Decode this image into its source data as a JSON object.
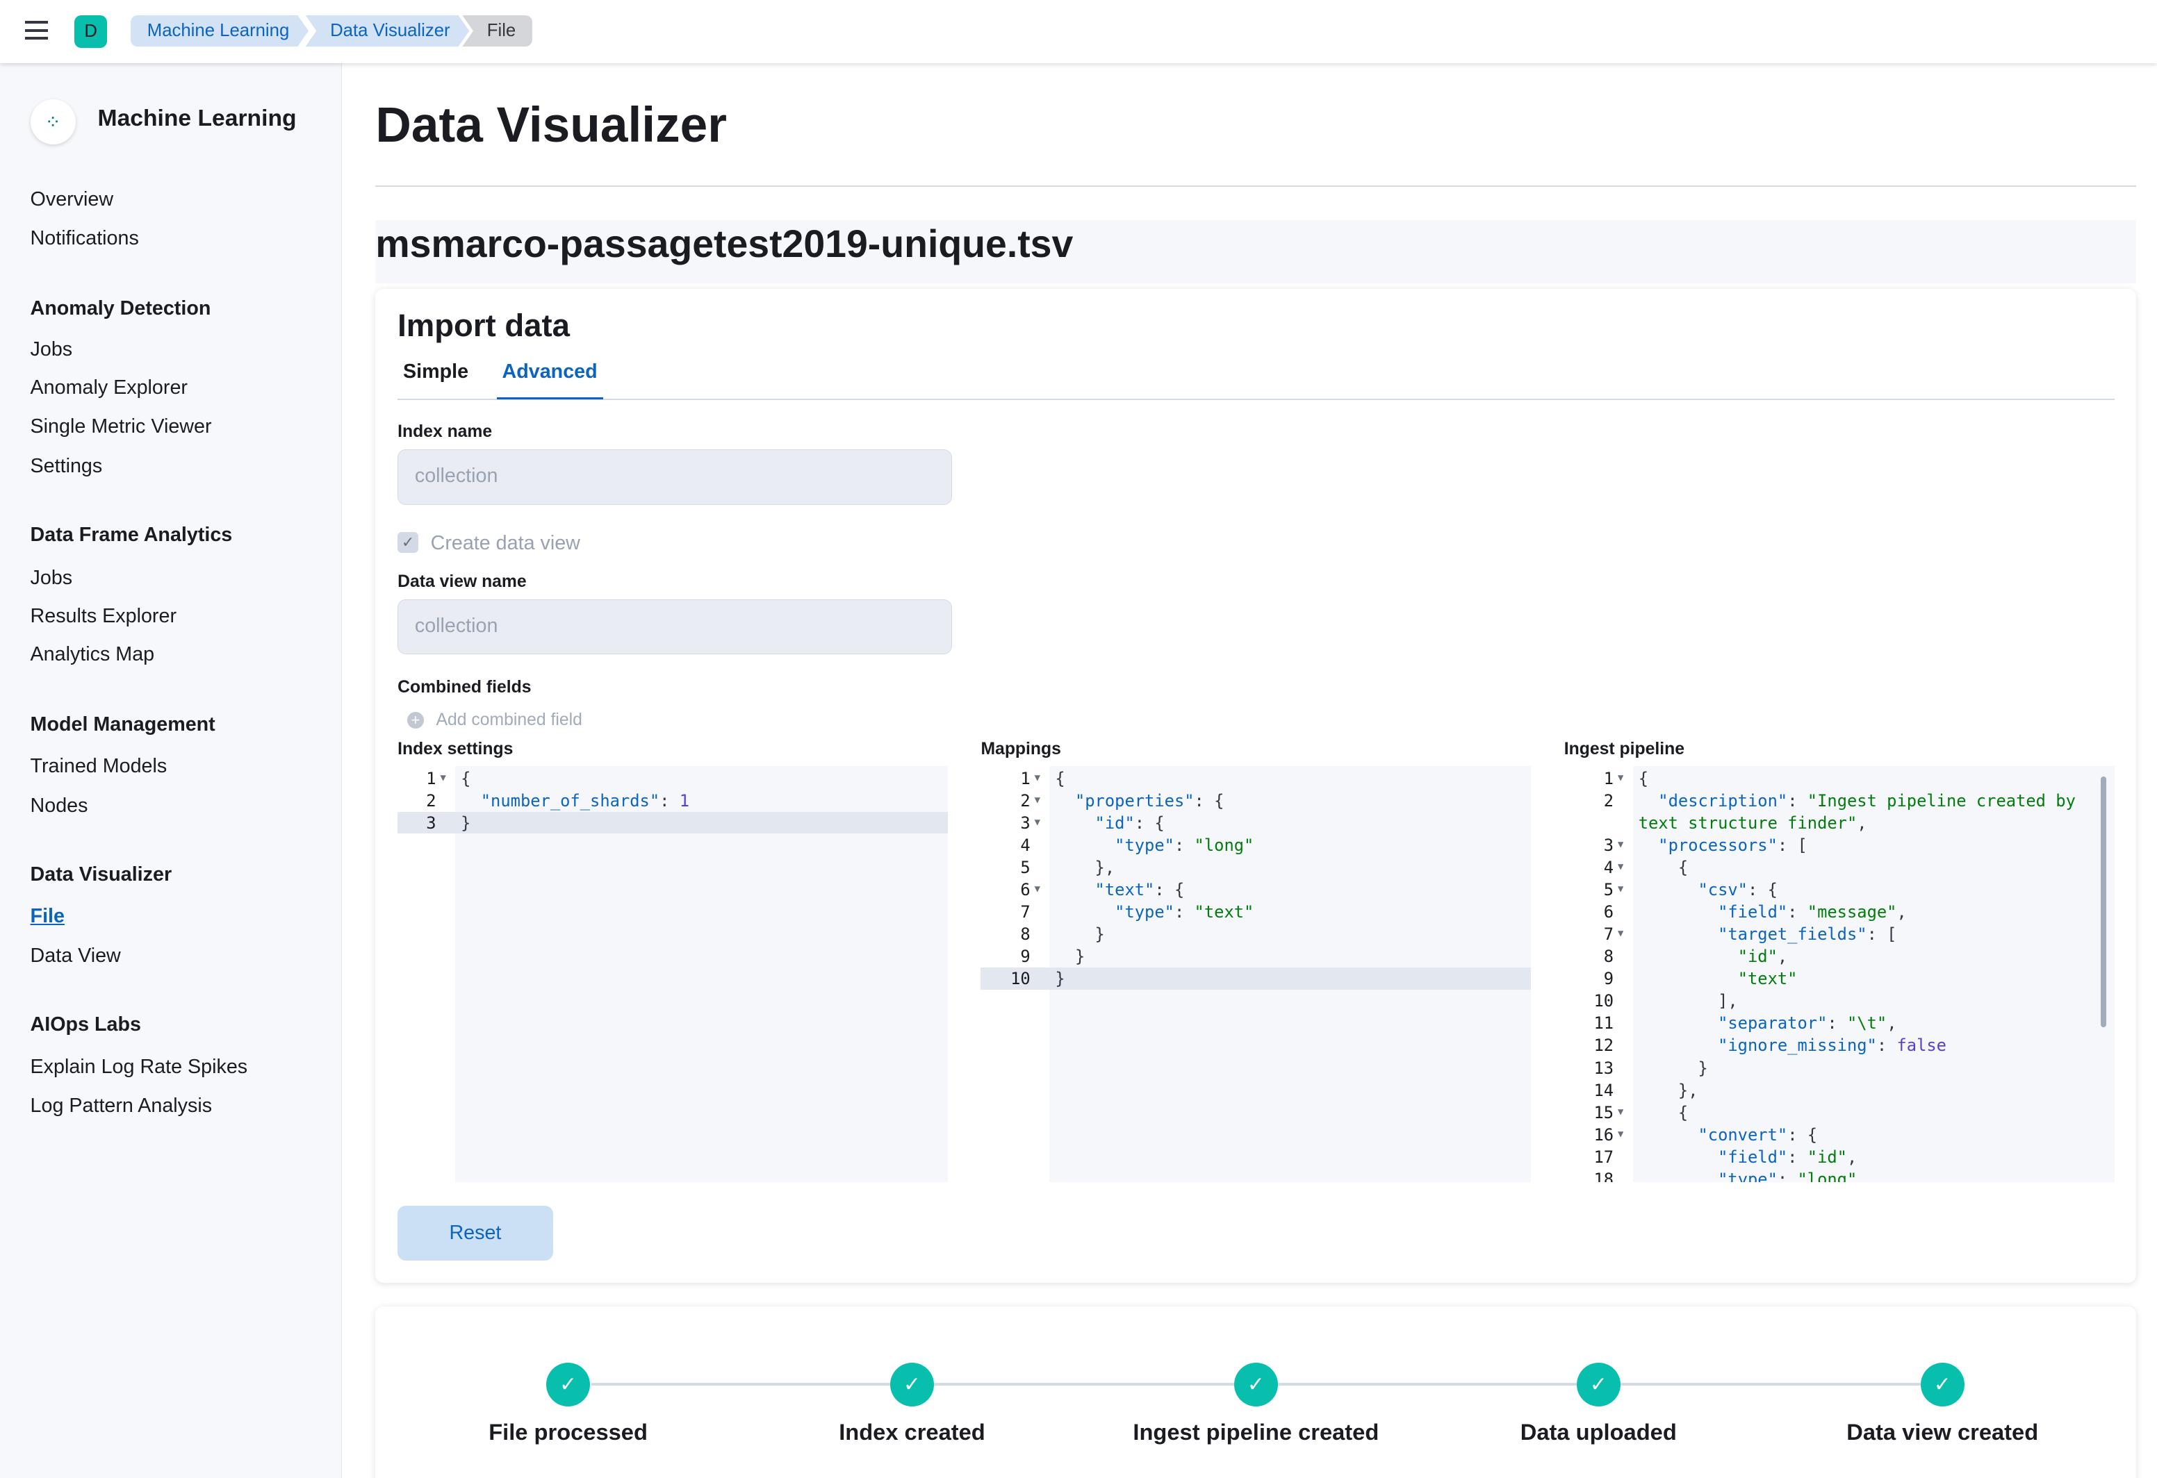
{
  "topbar": {
    "menu_icon": "hamburger-icon",
    "space_avatar": "D",
    "breadcrumbs": [
      "Machine Learning",
      "Data Visualizer",
      "File"
    ]
  },
  "sidebar": {
    "title": "Machine Learning",
    "groups": [
      {
        "label": "",
        "items": [
          "Overview",
          "Notifications"
        ]
      },
      {
        "label": "Anomaly Detection",
        "items": [
          "Jobs",
          "Anomaly Explorer",
          "Single Metric Viewer",
          "Settings"
        ]
      },
      {
        "label": "Data Frame Analytics",
        "items": [
          "Jobs",
          "Results Explorer",
          "Analytics Map"
        ]
      },
      {
        "label": "Model Management",
        "items": [
          "Trained Models",
          "Nodes"
        ]
      },
      {
        "label": "Data Visualizer",
        "items": [
          "File",
          "Data View"
        ]
      },
      {
        "label": "AIOps Labs",
        "items": [
          "Explain Log Rate Spikes",
          "Log Pattern Analysis"
        ]
      }
    ],
    "active_item": "File"
  },
  "main": {
    "title": "Data Visualizer",
    "file_name": "msmarco-passagetest2019-unique.tsv",
    "import": {
      "title": "Import data",
      "tabs": [
        "Simple",
        "Advanced"
      ],
      "active_tab": "Advanced",
      "index_name_label": "Index name",
      "index_name_value": "collection",
      "create_data_view_label": "Create data view",
      "create_data_view_checked": true,
      "data_view_name_label": "Data view name",
      "data_view_name_value": "collection",
      "combined_fields_label": "Combined fields",
      "add_combined_field": "Add combined field",
      "index_settings_label": "Index settings",
      "mappings_label": "Mappings",
      "ingest_pipeline_label": "Ingest pipeline",
      "index_settings_lines": [
        "{",
        "  \"number_of_shards\": 1",
        "}"
      ],
      "mappings_lines": [
        "{",
        "  \"properties\": {",
        "    \"id\": {",
        "      \"type\": \"long\"",
        "    },",
        "    \"text\": {",
        "      \"type\": \"text\"",
        "    }",
        "  }",
        "}"
      ],
      "pipeline_lines": [
        "{",
        "  \"description\": \"Ingest pipeline created by text structure finder\",",
        "  \"processors\": [",
        "    {",
        "      \"csv\": {",
        "        \"field\": \"message\",",
        "        \"target_fields\": [",
        "          \"id\",",
        "          \"text\"",
        "        ],",
        "        \"separator\": \"\\t\",",
        "        \"ignore_missing\": false",
        "      }",
        "    },",
        "    {",
        "      \"convert\": {",
        "        \"field\": \"id\",",
        "        \"type\": \"long\","
      ],
      "reset_label": "Reset"
    },
    "steps": [
      "File processed",
      "Index created",
      "Ingest pipeline created",
      "Data uploaded",
      "Data view created"
    ]
  },
  "colors": {
    "accent": "#0b64c0",
    "success": "#08bfae"
  }
}
